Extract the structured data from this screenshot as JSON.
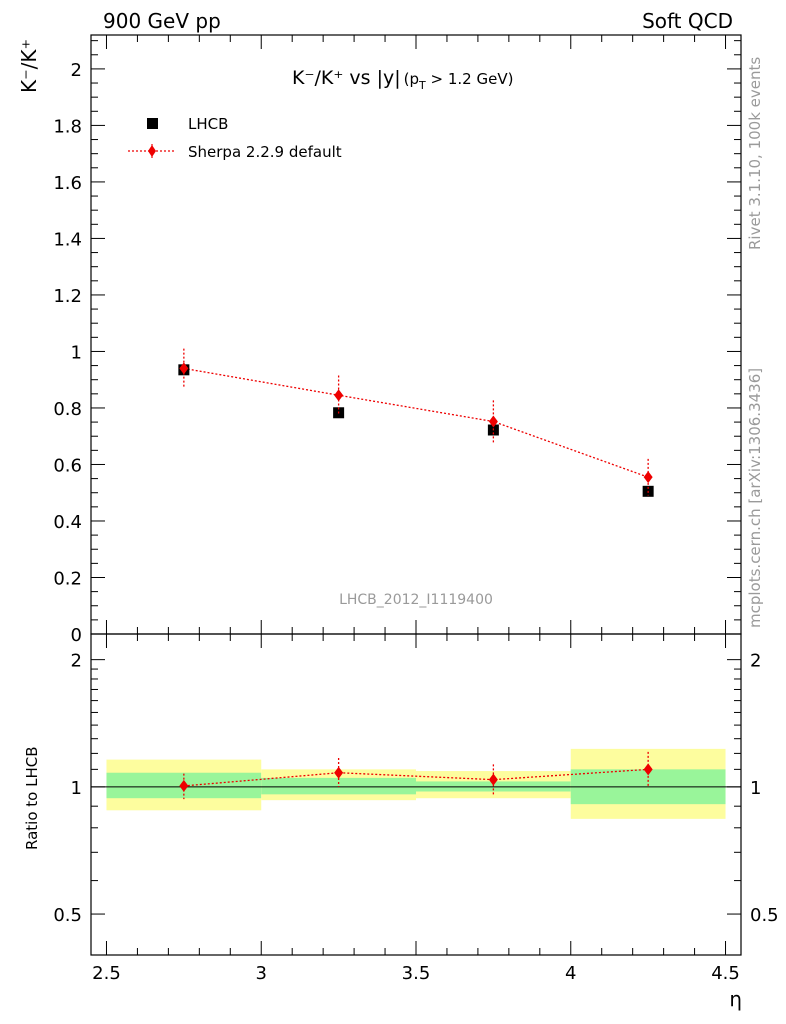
{
  "header": {
    "left": "900 GeV pp",
    "right": "Soft QCD"
  },
  "side_labels": {
    "rivet": "Rivet 3.1.10,  100k events",
    "mcplots": "mcplots.cern.ch [arXiv:1306.3436]"
  },
  "chart_data": {
    "type": "scatter",
    "title_main": "K⁻/K⁺ vs |y|",
    "title_sub": "(p",
    "title_sub_t": "T",
    "title_sub_end": " > 1.2 GeV)",
    "ylabel": "K⁻/K⁺",
    "xlabel": "η",
    "ratio_ylabel": "Ratio to LHCB",
    "watermark": "LHCB_2012_I1119400",
    "x_edges": [
      2.5,
      3.0,
      3.5,
      4.0,
      4.5
    ],
    "x": [
      2.75,
      3.25,
      3.75,
      4.25
    ],
    "xlim": [
      2.45,
      4.55
    ],
    "ylim": [
      0,
      2.12
    ],
    "ratio_ylim": [
      0.4,
      2.3
    ],
    "x_ticks": [
      "2.5",
      "3",
      "3.5",
      "4",
      "4.5"
    ],
    "y_ticks": [
      "0",
      "0.2",
      "0.4",
      "0.6",
      "0.8",
      "1",
      "1.2",
      "1.4",
      "1.6",
      "1.8",
      "2"
    ],
    "ratio_ticks": [
      "0.5",
      "1",
      "2"
    ],
    "legend": {
      "position": "top-left"
    },
    "series": [
      {
        "name": "LHCB",
        "marker": "square",
        "color": "#000000",
        "values": [
          0.935,
          0.783,
          0.722,
          0.505
        ]
      },
      {
        "name": "Sherpa 2.2.9 default",
        "marker": "diamond",
        "color": "#ee0000",
        "line": "dotted",
        "values": [
          0.94,
          0.845,
          0.752,
          0.555
        ],
        "errors": [
          0.07,
          0.07,
          0.075,
          0.065
        ]
      }
    ],
    "ratio": {
      "values": [
        1.005,
        1.08,
        1.04,
        1.1
      ],
      "errors_up": [
        0.07,
        0.09,
        0.09,
        0.11
      ],
      "errors_down": [
        0.07,
        0.08,
        0.08,
        0.1
      ],
      "band_green": [
        [
          0.94,
          1.08
        ],
        [
          0.96,
          1.05
        ],
        [
          0.975,
          1.03
        ],
        [
          0.91,
          1.1
        ]
      ],
      "band_yellow": [
        [
          0.88,
          1.16
        ],
        [
          0.93,
          1.1
        ],
        [
          0.94,
          1.09
        ],
        [
          0.84,
          1.23
        ]
      ]
    },
    "colors": {
      "green_band": "#99f59a",
      "yellow_band": "#fdfd9e"
    }
  }
}
